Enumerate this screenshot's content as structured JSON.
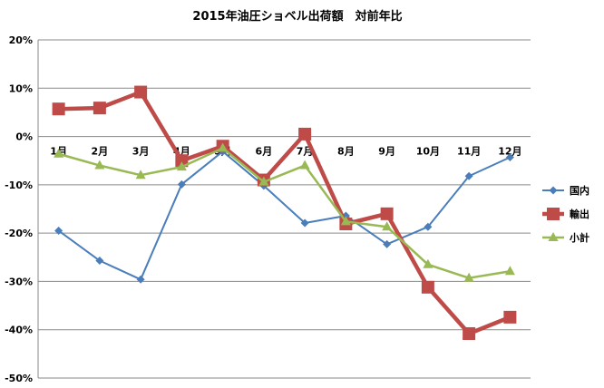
{
  "chart_data": {
    "type": "line",
    "title": "2015年油圧ショベル出荷額　対前年比",
    "categories": [
      "1月",
      "2月",
      "3月",
      "4月",
      "5月",
      "6月",
      "7月",
      "8月",
      "9月",
      "10月",
      "11月",
      "12月"
    ],
    "y_tick_labels": [
      "20%",
      "10%",
      "0%",
      "-10%",
      "-20%",
      "-30%",
      "-40%",
      "-50%"
    ],
    "y_ticks": [
      20,
      10,
      0,
      -10,
      -20,
      -30,
      -40,
      -50
    ],
    "ylim": [
      -50,
      20
    ],
    "grid": true,
    "legend_position": "right",
    "series": [
      {
        "name": "国内",
        "color": "#4a7ebb",
        "marker": "diamond",
        "values": [
          -19.5,
          -25.7,
          -29.6,
          -9.9,
          -3.1,
          -10.2,
          -17.9,
          -16.4,
          -22.3,
          -18.7,
          -8.2,
          -4.3
        ]
      },
      {
        "name": "輸出",
        "color": "#be4b48",
        "marker": "square",
        "values": [
          5.7,
          5.9,
          9.2,
          -5.0,
          -2.0,
          -9.0,
          0.5,
          -18.1,
          -16.0,
          -31.2,
          -40.8,
          -37.4
        ]
      },
      {
        "name": "小計",
        "color": "#98b954",
        "marker": "triangle",
        "values": [
          -3.6,
          -6.0,
          -8.0,
          -6.3,
          -2.4,
          -9.4,
          -6.0,
          -17.6,
          -18.7,
          -26.5,
          -29.3,
          -27.9
        ]
      }
    ]
  }
}
